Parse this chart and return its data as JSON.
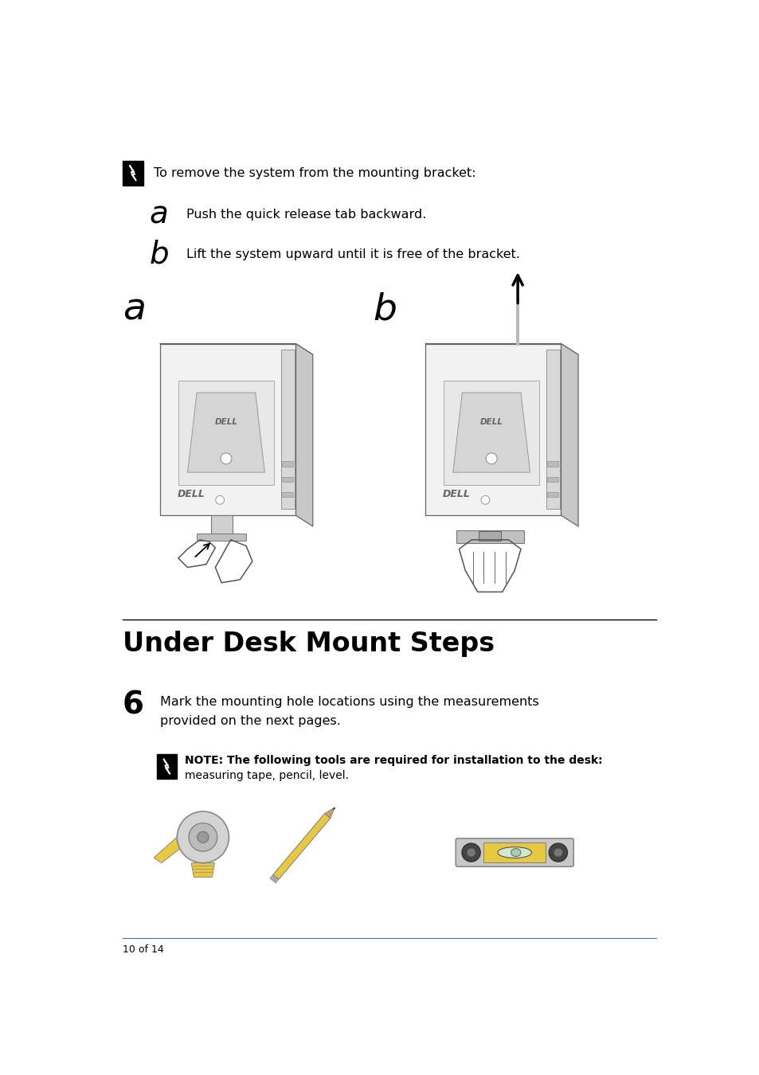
{
  "background_color": "#ffffff",
  "page_width": 9.54,
  "page_height": 13.5,
  "note_intro_text": "To remove the system from the mounting bracket:",
  "step_a_label": "a",
  "step_a_text": "Push the quick release tab backward.",
  "step_b_label": "b",
  "step_b_text": "Lift the system upward until it is free of the bracket.",
  "section_title": "Under Desk Mount Steps",
  "step6_label": "6",
  "step6_text_line1": "Mark the mounting hole locations using the measurements",
  "step6_text_line2": "provided on the next pages.",
  "note_text_line1": "NOTE: The following tools are required for installation to the desk:",
  "note_text_line2": "measuring tape, pencil, level.",
  "footer_text": "10 of 14",
  "divider_color": "#000000",
  "footer_divider_color": "#4472c4",
  "text_color": "#000000",
  "body_fontsize": 11.5,
  "label_a_fontsize": 28,
  "label_b_fontsize": 28,
  "label_illus_fontsize": 34,
  "section_title_fontsize": 24,
  "step6_label_fontsize": 28,
  "note_fontsize": 10,
  "footer_fontsize": 9
}
